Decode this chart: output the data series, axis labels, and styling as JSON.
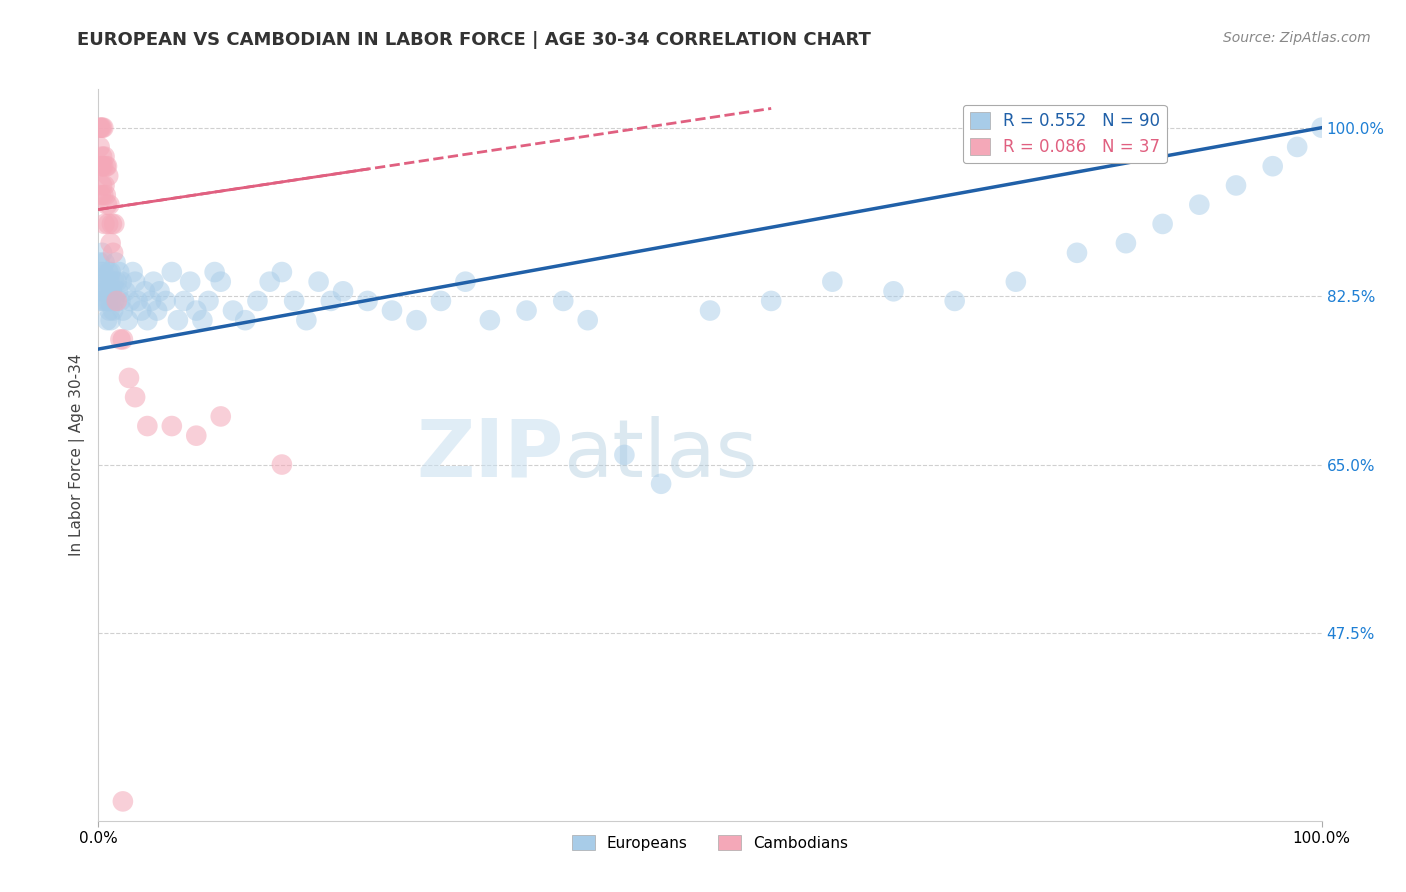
{
  "title": "EUROPEAN VS CAMBODIAN IN LABOR FORCE | AGE 30-34 CORRELATION CHART",
  "source": "Source: ZipAtlas.com",
  "ylabel": "In Labor Force | Age 30-34",
  "xlim": [
    0.0,
    1.0
  ],
  "ylim": [
    0.28,
    1.04
  ],
  "ytick_vals": [
    0.475,
    0.65,
    0.825,
    1.0
  ],
  "ytick_labels": [
    "47.5%",
    "65.0%",
    "82.5%",
    "100.0%"
  ],
  "grid_color": "#d0d0d0",
  "blue_color": "#a8cce8",
  "pink_color": "#f4a8b8",
  "blue_line_color": "#2060a8",
  "pink_line_color": "#e06080",
  "legend_blue_label": "R = 0.552   N = 90",
  "legend_pink_label": "R = 0.086   N = 37",
  "legend_blue_group": "Europeans",
  "legend_pink_group": "Cambodians",
  "blue_line_x0": 0.0,
  "blue_line_y0": 0.77,
  "blue_line_x1": 1.0,
  "blue_line_y1": 1.0,
  "pink_line_x0": 0.0,
  "pink_line_y0": 0.915,
  "pink_line_x1": 0.55,
  "pink_line_y1": 1.02,
  "blue_x": [
    0.001,
    0.001,
    0.002,
    0.002,
    0.003,
    0.003,
    0.004,
    0.004,
    0.005,
    0.005,
    0.006,
    0.006,
    0.007,
    0.007,
    0.008,
    0.008,
    0.009,
    0.009,
    0.01,
    0.01,
    0.01,
    0.011,
    0.012,
    0.013,
    0.013,
    0.014,
    0.015,
    0.016,
    0.017,
    0.018,
    0.019,
    0.02,
    0.022,
    0.024,
    0.026,
    0.028,
    0.03,
    0.032,
    0.035,
    0.038,
    0.04,
    0.043,
    0.045,
    0.048,
    0.05,
    0.055,
    0.06,
    0.065,
    0.07,
    0.075,
    0.08,
    0.085,
    0.09,
    0.095,
    0.1,
    0.11,
    0.12,
    0.13,
    0.14,
    0.15,
    0.16,
    0.17,
    0.18,
    0.19,
    0.2,
    0.22,
    0.24,
    0.26,
    0.28,
    0.3,
    0.32,
    0.35,
    0.38,
    0.4,
    0.43,
    0.46,
    0.5,
    0.55,
    0.6,
    0.65,
    0.7,
    0.75,
    0.8,
    0.84,
    0.87,
    0.9,
    0.93,
    0.96,
    0.98,
    1.0
  ],
  "blue_y": [
    0.84,
    0.86,
    0.82,
    0.85,
    0.83,
    0.87,
    0.82,
    0.85,
    0.83,
    0.86,
    0.82,
    0.84,
    0.8,
    0.83,
    0.82,
    0.85,
    0.81,
    0.84,
    0.82,
    0.8,
    0.85,
    0.83,
    0.81,
    0.84,
    0.82,
    0.86,
    0.84,
    0.83,
    0.85,
    0.82,
    0.84,
    0.81,
    0.83,
    0.8,
    0.82,
    0.85,
    0.84,
    0.82,
    0.81,
    0.83,
    0.8,
    0.82,
    0.84,
    0.81,
    0.83,
    0.82,
    0.85,
    0.8,
    0.82,
    0.84,
    0.81,
    0.8,
    0.82,
    0.85,
    0.84,
    0.81,
    0.8,
    0.82,
    0.84,
    0.85,
    0.82,
    0.8,
    0.84,
    0.82,
    0.83,
    0.82,
    0.81,
    0.8,
    0.82,
    0.84,
    0.8,
    0.81,
    0.82,
    0.8,
    0.66,
    0.63,
    0.81,
    0.82,
    0.84,
    0.83,
    0.82,
    0.84,
    0.87,
    0.88,
    0.9,
    0.92,
    0.94,
    0.96,
    0.98,
    1.0
  ],
  "pink_x": [
    0.001,
    0.001,
    0.002,
    0.002,
    0.002,
    0.003,
    0.003,
    0.003,
    0.003,
    0.004,
    0.004,
    0.004,
    0.005,
    0.005,
    0.005,
    0.006,
    0.006,
    0.007,
    0.007,
    0.008,
    0.008,
    0.009,
    0.01,
    0.011,
    0.012,
    0.013,
    0.015,
    0.018,
    0.02,
    0.025,
    0.03,
    0.04,
    0.06,
    0.08,
    0.1,
    0.15,
    0.02
  ],
  "pink_y": [
    1.0,
    0.98,
    1.0,
    0.96,
    0.93,
    1.0,
    0.97,
    0.94,
    0.96,
    1.0,
    0.96,
    0.93,
    0.97,
    0.94,
    0.9,
    0.96,
    0.93,
    0.96,
    0.92,
    0.95,
    0.9,
    0.92,
    0.88,
    0.9,
    0.87,
    0.9,
    0.82,
    0.78,
    0.78,
    0.74,
    0.72,
    0.69,
    0.69,
    0.68,
    0.7,
    0.65,
    0.3
  ]
}
